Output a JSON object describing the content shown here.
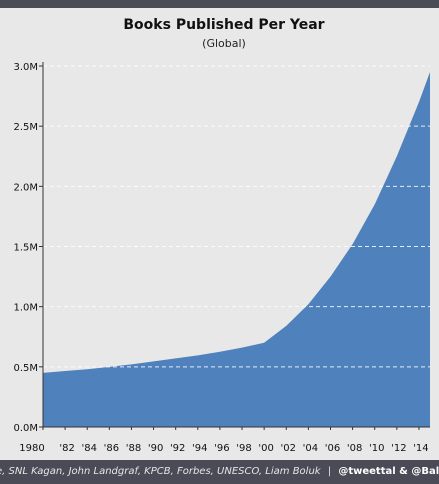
{
  "chart_data": {
    "type": "area",
    "title": "Books Published Per Year",
    "subtitle": "(Global)",
    "x": [
      1980,
      1982,
      1984,
      1986,
      1988,
      1990,
      1992,
      1994,
      1996,
      1998,
      2000,
      2002,
      2004,
      2006,
      2008,
      2010,
      2012,
      2014,
      2015
    ],
    "series": [
      {
        "values": [
          450000,
          465000,
          480000,
          500000,
          520000,
          545000,
          570000,
          595000,
          625000,
          660000,
          700000,
          840000,
          1020000,
          1250000,
          1520000,
          1850000,
          2250000,
          2700000,
          2950000
        ],
        "color": "#4f81bd"
      }
    ],
    "x_tick_labels": [
      "1980",
      "'82",
      "'84",
      "'86",
      "'88",
      "'90",
      "'92",
      "'94",
      "'96",
      "'98",
      "'00",
      "'02",
      "'04",
      "'06",
      "'08",
      "'10",
      "'12",
      "'14"
    ],
    "y_tick_labels": [
      "0.0M",
      "0.5M",
      "1.0M",
      "1.5M",
      "2.0M",
      "2.5M",
      "3.0M"
    ],
    "y_ticks": [
      0,
      500000,
      1000000,
      1500000,
      2000000,
      2500000,
      3000000
    ],
    "xlim": [
      1980,
      2015
    ],
    "ylim": [
      0,
      3000000
    ],
    "grid": "horizontal dashed",
    "legend": "none"
  },
  "footer": {
    "sources": "e, SNL Kagan, John Landgraf, KPCB, Forbes, UNESCO, Liam Boluk",
    "separator": "|",
    "handles": "@tweettal & @BallMatthew"
  },
  "colors": {
    "background": "#e8e8e8",
    "bar": "#4a4b57",
    "area": "#4f81bd",
    "grid": "#ffffff"
  }
}
